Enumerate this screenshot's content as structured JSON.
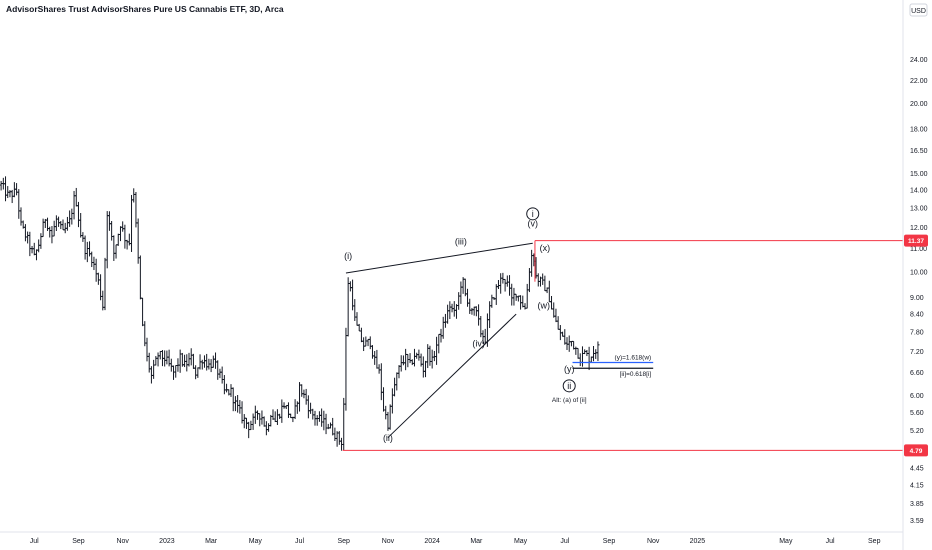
{
  "header": {
    "title": "AdvisorShares Trust AdvisorShares Pure US Cannabis ETF, 3D, Arca",
    "currency": "USD"
  },
  "chart_data": {
    "type": "bar",
    "title": "AdvisorShares Trust AdvisorShares Pure US Cannabis ETF, 3D, Arca",
    "scale": "log",
    "ylim": [
      3.45,
      28.0
    ],
    "y_ticks": [
      "24.00",
      "22.00",
      "20.00",
      "18.00",
      "16.50",
      "15.00",
      "14.00",
      "13.00",
      "12.00",
      "11.00",
      "10.00",
      "9.00",
      "8.40",
      "7.80",
      "7.20",
      "6.60",
      "6.00",
      "5.60",
      "5.20",
      "4.80",
      "4.45",
      "4.15",
      "3.85",
      "3.59"
    ],
    "x_ticks": [
      {
        "label": "Jul",
        "t": 0.0
      },
      {
        "label": "Sep",
        "t": 2.0
      },
      {
        "label": "Nov",
        "t": 4.0
      },
      {
        "label": "2023",
        "t": 6.0
      },
      {
        "label": "Mar",
        "t": 8.0
      },
      {
        "label": "May",
        "t": 10.0
      },
      {
        "label": "Jul",
        "t": 12.0
      },
      {
        "label": "Sep",
        "t": 14.0
      },
      {
        "label": "Nov",
        "t": 16.0
      },
      {
        "label": "2024",
        "t": 18.0
      },
      {
        "label": "Mar",
        "t": 20.0
      },
      {
        "label": "May",
        "t": 22.0
      },
      {
        "label": "Jul",
        "t": 24.0
      },
      {
        "label": "Sep",
        "t": 26.0
      },
      {
        "label": "Nov",
        "t": 28.0
      },
      {
        "label": "2025",
        "t": 30.0
      },
      {
        "label": "May",
        "t": 34.0
      },
      {
        "label": "Jul",
        "t": 36.0
      },
      {
        "label": "Sep",
        "t": 38.0
      }
    ],
    "t_range": [
      -1.55,
      39.3
    ],
    "price_path": [
      [
        -1.5,
        14.3
      ],
      [
        -1.2,
        13.7
      ],
      [
        -0.8,
        13.9
      ],
      [
        -0.6,
        12.1
      ],
      [
        -0.3,
        11.4
      ],
      [
        0.0,
        10.6
      ],
      [
        0.2,
        11.2
      ],
      [
        0.5,
        12.5
      ],
      [
        0.8,
        11.6
      ],
      [
        1.0,
        12.4
      ],
      [
        1.3,
        11.7
      ],
      [
        1.6,
        12.3
      ],
      [
        1.85,
        13.8
      ],
      [
        2.1,
        11.7
      ],
      [
        2.3,
        11.0
      ],
      [
        2.6,
        10.6
      ],
      [
        2.9,
        9.6
      ],
      [
        3.1,
        8.7
      ],
      [
        3.3,
        12.8
      ],
      [
        3.6,
        10.8
      ],
      [
        3.9,
        12.2
      ],
      [
        4.1,
        11.5
      ],
      [
        4.3,
        11.3
      ],
      [
        4.45,
        14.9
      ],
      [
        4.7,
        10.5
      ],
      [
        4.85,
        8.2
      ],
      [
        5.1,
        7.0
      ],
      [
        5.3,
        6.5
      ],
      [
        5.6,
        7.1
      ],
      [
        5.9,
        7.0
      ],
      [
        6.1,
        6.8
      ],
      [
        6.3,
        6.6
      ],
      [
        6.6,
        7.0
      ],
      [
        6.8,
        6.8
      ],
      [
        7.1,
        7.0
      ],
      [
        7.3,
        6.6
      ],
      [
        7.6,
        7.0
      ],
      [
        7.9,
        6.8
      ],
      [
        8.1,
        6.9
      ],
      [
        8.4,
        6.5
      ],
      [
        8.6,
        6.1
      ],
      [
        8.9,
        6.1
      ],
      [
        9.1,
        5.8
      ],
      [
        9.4,
        5.5
      ],
      [
        9.7,
        5.3
      ],
      [
        9.9,
        5.4
      ],
      [
        10.1,
        5.6
      ],
      [
        10.3,
        5.5
      ],
      [
        10.5,
        5.2
      ],
      [
        10.7,
        5.6
      ],
      [
        10.9,
        5.4
      ],
      [
        11.1,
        5.6
      ],
      [
        11.3,
        5.8
      ],
      [
        11.5,
        5.6
      ],
      [
        11.7,
        5.4
      ],
      [
        12.0,
        6.2
      ],
      [
        12.3,
        5.9
      ],
      [
        12.5,
        5.6
      ],
      [
        12.7,
        5.5
      ],
      [
        13.0,
        5.4
      ],
      [
        13.3,
        5.3
      ],
      [
        13.5,
        5.2
      ],
      [
        13.8,
        5.0
      ],
      [
        13.95,
        4.95
      ],
      [
        14.05,
        6.8
      ],
      [
        14.2,
        9.6
      ],
      [
        14.35,
        9.2
      ],
      [
        14.5,
        8.2
      ],
      [
        14.7,
        7.7
      ],
      [
        14.9,
        7.4
      ],
      [
        15.2,
        7.5
      ],
      [
        15.4,
        6.9
      ],
      [
        15.6,
        6.6
      ],
      [
        15.8,
        5.7
      ],
      [
        16.0,
        5.35
      ],
      [
        16.2,
        6.0
      ],
      [
        16.4,
        6.5
      ],
      [
        16.6,
        6.9
      ],
      [
        16.8,
        7.0
      ],
      [
        17.0,
        6.8
      ],
      [
        17.2,
        7.1
      ],
      [
        17.4,
        7.0
      ],
      [
        17.6,
        6.7
      ],
      [
        17.8,
        7.2
      ],
      [
        18.0,
        6.9
      ],
      [
        18.2,
        7.4
      ],
      [
        18.4,
        7.8
      ],
      [
        18.6,
        8.2
      ],
      [
        18.8,
        8.7
      ],
      [
        19.0,
        8.4
      ],
      [
        19.2,
        9.0
      ],
      [
        19.35,
        9.8
      ],
      [
        19.55,
        8.8
      ],
      [
        19.8,
        8.6
      ],
      [
        20.0,
        8.4
      ],
      [
        20.2,
        7.8
      ],
      [
        20.4,
        7.6
      ],
      [
        20.6,
        8.6
      ],
      [
        20.8,
        9.1
      ],
      [
        21.0,
        9.5
      ],
      [
        21.2,
        9.8
      ],
      [
        21.4,
        9.5
      ],
      [
        21.6,
        8.9
      ],
      [
        21.8,
        9.2
      ],
      [
        22.0,
        8.9
      ],
      [
        22.2,
        8.6
      ],
      [
        22.4,
        10.1
      ],
      [
        22.55,
        11.0
      ],
      [
        22.7,
        9.8
      ],
      [
        22.9,
        9.6
      ],
      [
        23.1,
        9.4
      ],
      [
        23.3,
        9.0
      ],
      [
        23.5,
        8.3
      ],
      [
        23.7,
        7.9
      ],
      [
        23.9,
        7.6
      ],
      [
        24.1,
        7.4
      ],
      [
        24.3,
        7.5
      ],
      [
        24.5,
        7.3
      ],
      [
        24.7,
        7.0
      ],
      [
        24.9,
        7.15
      ],
      [
        25.1,
        7.0
      ],
      [
        25.3,
        7.2
      ],
      [
        25.5,
        7.3
      ]
    ],
    "series": [
      {
        "name": "(y)=1.618(w)",
        "value": 6.88
      },
      {
        "name": "[ii]=0.618[i]",
        "value": 6.72
      }
    ],
    "horizontal_levels": [
      {
        "value": 11.37,
        "color": "#f23645",
        "label": "11.37"
      },
      {
        "value": 4.79,
        "color": "#f23645",
        "label": "4.79"
      }
    ],
    "projection_levels": [
      {
        "value": 6.88,
        "color": "#2962ff",
        "label": "(y)=1.618(w)"
      },
      {
        "value": 6.72,
        "color": "#131722",
        "label": "[ii]=0.618[i]"
      }
    ],
    "trendlines": [
      {
        "from": [
          14.1,
          9.95
        ],
        "to": [
          22.55,
          11.25
        ]
      },
      {
        "from": [
          16.0,
          5.05
        ],
        "to": [
          21.8,
          8.4
        ]
      }
    ],
    "wave_labels": [
      {
        "text": "(i)",
        "t": 14.2,
        "v": 10.55
      },
      {
        "text": "(ii)",
        "t": 16.0,
        "v": 4.98
      },
      {
        "text": "(iii)",
        "t": 19.3,
        "v": 11.2
      },
      {
        "text": "(iv)",
        "t": 20.1,
        "v": 7.35
      },
      {
        "text": "(v)",
        "t": 22.55,
        "v": 12.05
      },
      {
        "text": "(x)",
        "t": 23.1,
        "v": 10.9
      },
      {
        "text": "(w)",
        "t": 23.05,
        "v": 8.6
      },
      {
        "text": "(y)",
        "t": 24.2,
        "v": 6.62
      }
    ],
    "circled_labels": [
      {
        "text": "i",
        "t": 22.55,
        "v": 12.7
      },
      {
        "text": "ii",
        "t": 24.2,
        "v": 6.25
      }
    ],
    "notes": [
      {
        "text": "Alt: (a) of [ii]",
        "t": 24.2,
        "v": 5.85
      }
    ],
    "colors": {
      "bars": "#131722",
      "resistance": "#f23645",
      "projection": "#2962ff",
      "text": "#131722",
      "axis": "#e0e3eb",
      "background": "#ffffff"
    }
  }
}
